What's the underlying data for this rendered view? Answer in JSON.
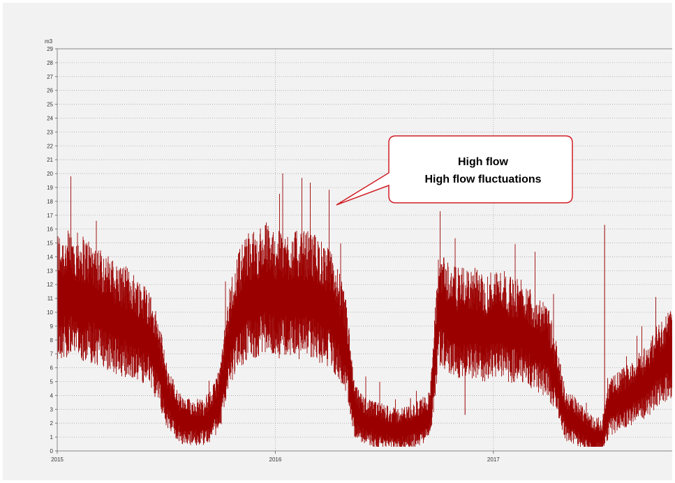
{
  "chart_data": {
    "type": "line",
    "ylabel": "m3",
    "xlabel": "",
    "ylim": [
      0,
      29
    ],
    "xlim": [
      2015.0,
      2017.82
    ],
    "y_ticks": [
      "0",
      "1",
      "2",
      "3",
      "4",
      "5",
      "6",
      "7",
      "8",
      "9",
      "10",
      "11",
      "12",
      "13",
      "14",
      "15",
      "16",
      "17",
      "18",
      "19",
      "20",
      "21",
      "22",
      "23",
      "24",
      "25",
      "26",
      "27",
      "28",
      "29"
    ],
    "x_ticks": [
      "2015",
      "2016",
      "2017"
    ],
    "grid": true,
    "line_color": "#9b0000",
    "annotation": {
      "line1": "High flow",
      "line2": "High flow fluctuations"
    },
    "series": [
      {
        "x": [
          2015.0,
          2015.08,
          2015.17,
          2015.25,
          2015.33,
          2015.42,
          2015.47,
          2015.5,
          2015.55,
          2015.58,
          2015.63,
          2015.67,
          2015.71,
          2015.75,
          2015.79,
          2015.83,
          2015.88,
          2015.92,
          2015.96,
          2016.0,
          2016.04,
          2016.08,
          2016.13,
          2016.17,
          2016.21,
          2016.25,
          2016.29,
          2016.33,
          2016.36,
          2016.38,
          2016.42,
          2016.46,
          2016.5,
          2016.54,
          2016.58,
          2016.63,
          2016.67,
          2016.71,
          2016.75,
          2016.77,
          2016.79,
          2016.83,
          2016.88,
          2016.92,
          2016.96,
          2017.0,
          2017.04,
          2017.08,
          2017.13,
          2017.17,
          2017.21,
          2017.25,
          2017.29,
          2017.33,
          2017.38,
          2017.42,
          2017.46,
          2017.5,
          2017.53,
          2017.58,
          2017.63,
          2017.67,
          2017.71,
          2017.75,
          2017.79,
          2017.82
        ],
        "values": [
          11,
          11,
          10.5,
          9.5,
          9,
          8,
          6,
          4,
          2.5,
          2,
          2,
          2,
          2.5,
          4,
          8,
          10,
          11,
          11,
          11.5,
          11,
          11,
          11,
          11,
          11,
          10.5,
          10,
          9,
          7,
          3,
          2.5,
          2,
          1.8,
          1.7,
          1.5,
          1.5,
          1.7,
          2,
          2.5,
          10,
          10,
          9.5,
          9,
          9,
          9,
          8.5,
          9,
          9,
          8.5,
          8.5,
          8,
          7.5,
          7,
          5,
          2.5,
          2,
          1.5,
          1,
          1,
          3,
          3.5,
          4,
          4.5,
          5,
          6,
          6.5,
          7
        ]
      }
    ],
    "spikes": [
      {
        "x": 2016.62,
        "y": 3.8
      },
      {
        "x": 2016.87,
        "y": 2.6
      },
      {
        "x": 2017.51,
        "y": 16.3
      }
    ]
  }
}
